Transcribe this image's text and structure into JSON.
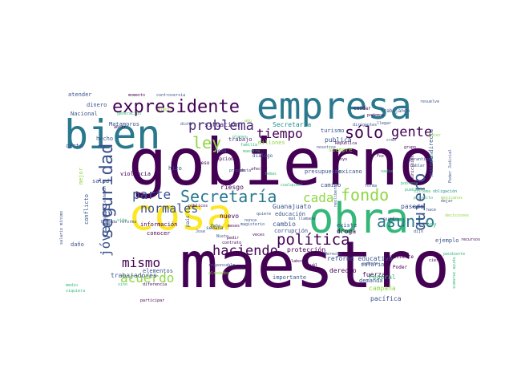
{
  "palette": {
    "dark": "#440154",
    "indigo": "#3b528b",
    "teal": "#21918c",
    "green": "#35b779",
    "lime": "#90d743",
    "yellow": "#fde725"
  },
  "words": [
    {
      "text": "maestro",
      "color": "#440154"
    },
    {
      "text": "gobierno",
      "color": "#440154"
    },
    {
      "text": "cosa",
      "color": "#fde725"
    },
    {
      "text": "obra",
      "color": "#35b779"
    },
    {
      "text": "empresa",
      "color": "#2a788e"
    },
    {
      "text": "bien",
      "color": "#2a788e"
    },
    {
      "text": "expresidente",
      "color": "#440154"
    },
    {
      "text": "Secretaría",
      "color": "#2a788e"
    },
    {
      "text": "fondo",
      "color": "#90d743"
    },
    {
      "text": "seguridad",
      "color": "#3b528b"
    },
    {
      "text": "problema",
      "color": "#482878"
    },
    {
      "text": "tiempo",
      "color": "#440154"
    },
    {
      "text": "sólo",
      "color": "#440154"
    },
    {
      "text": "ley",
      "color": "#90d743"
    },
    {
      "text": "gente",
      "color": "#440154"
    },
    {
      "text": "parte",
      "color": "#3b528b"
    },
    {
      "text": "cada",
      "color": "#90d743"
    },
    {
      "text": "asunto",
      "color": "#2a788e"
    },
    {
      "text": "quiero",
      "color": "#3b528b"
    },
    {
      "text": "política",
      "color": "#440154"
    },
    {
      "text": "haciendo",
      "color": "#440154"
    },
    {
      "text": "mismo",
      "color": "#440154"
    },
    {
      "text": "acuerdo",
      "color": "#90d743"
    },
    {
      "text": "normales",
      "color": "#3b528b"
    },
    {
      "text": "jóvenes",
      "color": "#3b528b"
    },
    {
      "text": "Matamoros",
      "color": "#3b528b"
    },
    {
      "text": "dinero",
      "color": "#3b528b"
    },
    {
      "text": "atender",
      "color": "#3b528b"
    },
    {
      "text": "Nacional",
      "color": "#3b528b"
    },
    {
      "text": "situación",
      "color": "#482878"
    },
    {
      "text": "trabajo",
      "color": "#482878"
    },
    {
      "text": "publica",
      "color": "#3b528b"
    },
    {
      "text": "mejor",
      "color": "#90d743"
    },
    {
      "text": "hizo",
      "color": "#3b528b"
    },
    {
      "text": "violencia",
      "color": "#440154"
    },
    {
      "text": "salud",
      "color": "#3b528b"
    },
    {
      "text": "riesgo",
      "color": "#440154"
    },
    {
      "text": "nuevo",
      "color": "#440154"
    },
    {
      "text": "información",
      "color": "#440154"
    },
    {
      "text": "conocer",
      "color": "#440154"
    },
    {
      "text": "reforma educativa",
      "color": "#3b528b"
    },
    {
      "text": "droga",
      "color": "#440154"
    },
    {
      "text": "existe",
      "color": "#3b528b"
    },
    {
      "text": "presupuesto",
      "color": "#3b528b"
    },
    {
      "text": "Guanajuato",
      "color": "#3b528b"
    },
    {
      "text": "educación",
      "color": "#3b528b"
    },
    {
      "text": "cambio",
      "color": "#3b528b"
    },
    {
      "text": "corrupción",
      "color": "#3b528b"
    },
    {
      "text": "protección",
      "color": "#440154"
    },
    {
      "text": "derecho",
      "color": "#440154"
    },
    {
      "text": "trabajadores",
      "color": "#3b528b"
    },
    {
      "text": "elementos",
      "color": "#3b528b"
    },
    {
      "text": "importante",
      "color": "#3b528b"
    },
    {
      "text": "fuerza",
      "color": "#440154"
    },
    {
      "text": "Federal",
      "color": "#35b779"
    },
    {
      "text": "salario",
      "color": "#3b528b"
    },
    {
      "text": "campaña",
      "color": "#90d743"
    },
    {
      "text": "pacífica",
      "color": "#3b528b"
    },
    {
      "text": "demanda",
      "color": "#3b528b"
    },
    {
      "text": "ejemplo",
      "color": "#3b528b"
    },
    {
      "text": "pasado",
      "color": "#3b528b"
    },
    {
      "text": "hoy",
      "color": "#35b779"
    },
    {
      "text": "manera directa",
      "color": "#3b528b"
    },
    {
      "text": "turismo",
      "color": "#3b528b"
    },
    {
      "text": "carta",
      "color": "#3b528b"
    },
    {
      "text": "hecho",
      "color": "#3b528b"
    },
    {
      "text": "daño",
      "color": "#3b528b"
    },
    {
      "text": "conflicto",
      "color": "#3b528b"
    },
    {
      "text": "trabajando",
      "color": "#3b528b"
    },
    {
      "text": "cuidar",
      "color": "#440154"
    },
    {
      "text": "resuelve",
      "color": "#3b528b"
    },
    {
      "text": "momento",
      "color": "#440154"
    },
    {
      "text": "controversia",
      "color": "#3b528b"
    },
    {
      "text": "Secretaría",
      "color": "#21918c"
    },
    {
      "text": "siempre",
      "color": "#90d743"
    },
    {
      "text": "opciones",
      "color": "#440154"
    },
    {
      "text": "diálogo",
      "color": "#3b528b"
    },
    {
      "text": "afectar",
      "color": "#440154"
    },
    {
      "text": "millones",
      "color": "#90d743"
    },
    {
      "text": "mexicano",
      "color": "#3b528b"
    },
    {
      "text": "camino",
      "color": "#3b528b"
    },
    {
      "text": "puedo",
      "color": "#3b528b"
    },
    {
      "text": "suficiente",
      "color": "#440154"
    },
    {
      "text": "Poder",
      "color": "#440154"
    },
    {
      "text": "aumento",
      "color": "#3b528b"
    },
    {
      "text": "cuál",
      "color": "#440154"
    },
    {
      "text": "dicho",
      "color": "#3b528b"
    },
    {
      "text": "creo",
      "color": "#3b528b"
    },
    {
      "text": "familia",
      "color": "#35b779"
    },
    {
      "text": "llegar",
      "color": "#3b528b"
    },
    {
      "text": "grupo",
      "color": "#440154"
    },
    {
      "text": "garantizar",
      "color": "#3b528b"
    },
    {
      "text": "José",
      "color": "#3b528b"
    },
    {
      "text": "Fox",
      "color": "#440154"
    },
    {
      "text": "semana",
      "color": "#3b528b"
    },
    {
      "text": "país",
      "color": "#3b528b"
    },
    {
      "text": "responsable",
      "color": "#3b528b"
    },
    {
      "text": "peso",
      "color": "#440154"
    },
    {
      "text": "toda",
      "color": "#3b528b"
    },
    {
      "text": "pedir",
      "color": "#440154"
    },
    {
      "text": "veces",
      "color": "#440154"
    },
    {
      "text": "diferencia",
      "color": "#440154"
    },
    {
      "text": "sino",
      "color": "#35b779"
    },
    {
      "text": "medio",
      "color": "#35b779"
    },
    {
      "text": "siquiera",
      "color": "#35b779"
    },
    {
      "text": "laboral",
      "color": "#440154"
    },
    {
      "text": "proyecto",
      "color": "#35b779"
    },
    {
      "text": "Poder Judicial",
      "color": "#3b528b"
    },
    {
      "text": "Peña",
      "color": "#3b528b"
    },
    {
      "text": "Derecho",
      "color": "#3b528b"
    },
    {
      "text": "dirigentes",
      "color": "#3b528b"
    },
    {
      "text": "venta",
      "color": "#21918c"
    },
    {
      "text": "nadie",
      "color": "#35b779"
    },
    {
      "text": "abrir",
      "color": "#440154"
    },
    {
      "text": "meses",
      "color": "#440154"
    },
    {
      "text": "públicos",
      "color": "#440154"
    },
    {
      "text": "participar",
      "color": "#440154"
    },
    {
      "text": "cierto",
      "color": "#440154"
    },
    {
      "text": "contrato",
      "color": "#440154"
    },
    {
      "text": "forma",
      "color": "#3b528b"
    },
    {
      "text": "neoliberal",
      "color": "#3b528b"
    },
    {
      "text": "quiere",
      "color": "#3b528b"
    },
    {
      "text": "pendiente",
      "color": "#35b779"
    },
    {
      "text": "magisterio",
      "color": "#3b528b"
    },
    {
      "text": "mal llamada",
      "color": "#3b528b"
    },
    {
      "text": "apoyo",
      "color": "#440154"
    },
    {
      "text": "nunca",
      "color": "#3b528b"
    },
    {
      "text": "propuesta",
      "color": "#3b528b"
    },
    {
      "text": "llamada reforma",
      "color": "#3b528b"
    },
    {
      "text": "salario mínimo",
      "color": "#3b528b"
    },
    {
      "text": "alrededor",
      "color": "#90d743"
    },
    {
      "text": "República",
      "color": "#440154"
    },
    {
      "text": "generación",
      "color": "#35b779"
    },
    {
      "text": "elegir",
      "color": "#90d743"
    },
    {
      "text": "vida",
      "color": "#35b779"
    },
    {
      "text": "año",
      "color": "#90d743"
    },
    {
      "text": "Felipe Calderón",
      "color": "#3b528b"
    },
    {
      "text": "nosotros",
      "color": "#3b528b"
    },
    {
      "text": "maestra",
      "color": "#35b779"
    },
    {
      "text": "temas",
      "color": "#35b779"
    },
    {
      "text": "ido",
      "color": "#440154"
    },
    {
      "text": "cualquier",
      "color": "#35b779"
    },
    {
      "text": "obligación",
      "color": "#21918c"
    },
    {
      "text": "mexicanos",
      "color": "#90d743"
    },
    {
      "text": "decisiones",
      "color": "#90d743"
    },
    {
      "text": "sistema",
      "color": "#35b779"
    },
    {
      "text": "municipios",
      "color": "#440154"
    },
    {
      "text": "hace",
      "color": "#3b528b"
    },
    {
      "text": "sumarse ayuda",
      "color": "#35b779"
    },
    {
      "text": "recursos",
      "color": "#440154"
    },
    {
      "text": "podemos",
      "color": "#440154"
    },
    {
      "text": "Nieto",
      "color": "#3b528b"
    },
    {
      "text": "dejar",
      "color": "#3b528b"
    },
    {
      "text": "dijo",
      "color": "#3b528b"
    },
    {
      "text": "hacer",
      "color": "#90d743"
    },
    {
      "text": "planes",
      "color": "#35b779"
    },
    {
      "text": "hablar",
      "color": "#3b528b"
    },
    {
      "text": "pobreza",
      "color": "#35b779"
    },
    {
      "text": "pueblo",
      "color": "#35b779"
    }
  ]
}
